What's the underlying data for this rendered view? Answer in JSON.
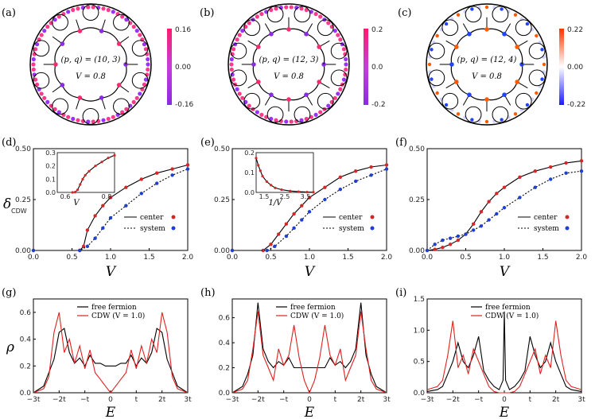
{
  "colors": {
    "center": "#d62728",
    "system": "#1f3fd0",
    "free": "#000000",
    "cdw": "#e02020"
  },
  "disks": [
    {
      "label": "(a)",
      "pq": "(p, q) = (10, 3)",
      "V": "V = 0.8",
      "cb_top": "0.16",
      "cb_mid": "0.00",
      "cb_bot": "-0.16",
      "scheme": "pink"
    },
    {
      "label": "(b)",
      "pq": "(p, q) = (12, 3)",
      "V": "V = 0.8",
      "cb_top": "0.2",
      "cb_mid": "0.0",
      "cb_bot": "-0.2",
      "scheme": "pink"
    },
    {
      "label": "(c)",
      "pq": "(p, q) = (12, 4)",
      "V": "V = 0.8",
      "cb_top": "0.22",
      "cb_mid": "0.00",
      "cb_bot": "-0.22",
      "scheme": "redblue"
    }
  ],
  "mid_axes": {
    "xlabel": "V",
    "ylabel": "δ",
    "ylabel_sub": "CDW",
    "legend_center": "center",
    "legend_system": "system"
  },
  "bot_axes": {
    "xlabel": "E",
    "ylabel": "ρ",
    "legend_free": "free fermion",
    "legend_cdw": "CDW (V = 1.0)"
  },
  "mid_labels": [
    "(d)",
    "(e)",
    "(f)"
  ],
  "bot_labels": [
    "(g)",
    "(h)",
    "(i)"
  ],
  "chart_data": [
    {
      "panel": "(d)",
      "type": "line",
      "xlim": [
        0,
        2
      ],
      "ylim": [
        0,
        0.5
      ],
      "xticks": [
        "0.0",
        "0.5",
        "1.0",
        "1.5",
        "2.0"
      ],
      "yticks": [
        "0.00",
        "0.25",
        "0.50"
      ],
      "series": [
        {
          "name": "center",
          "x": [
            0,
            0.6,
            0.65,
            0.7,
            0.8,
            0.9,
            1.0,
            1.2,
            1.4,
            1.6,
            1.8,
            2.0
          ],
          "y": [
            0,
            0,
            0.02,
            0.1,
            0.17,
            0.22,
            0.26,
            0.31,
            0.35,
            0.38,
            0.4,
            0.42
          ]
        },
        {
          "name": "system",
          "x": [
            0,
            0.6,
            0.7,
            0.8,
            0.9,
            1.0,
            1.2,
            1.4,
            1.6,
            1.8,
            2.0
          ],
          "y": [
            0,
            0,
            0.02,
            0.06,
            0.11,
            0.16,
            0.22,
            0.28,
            0.33,
            0.37,
            0.4
          ]
        }
      ],
      "inset": {
        "xlabel": "V",
        "xticks": [
          "0.6",
          "0.8"
        ],
        "yticks": [
          "0.0",
          "0.1",
          "0.2",
          "0.3"
        ],
        "xlim": [
          0.5,
          0.95
        ],
        "ylim": [
          0,
          0.3
        ],
        "x": [
          0.62,
          0.64,
          0.66,
          0.68,
          0.7,
          0.72,
          0.75,
          0.8,
          0.85,
          0.9,
          0.95
        ],
        "y": [
          0,
          0.002,
          0.02,
          0.06,
          0.1,
          0.13,
          0.16,
          0.2,
          0.23,
          0.26,
          0.28
        ]
      }
    },
    {
      "panel": "(e)",
      "type": "line",
      "xlim": [
        0,
        2
      ],
      "ylim": [
        0,
        0.5
      ],
      "xticks": [
        "0.0",
        "0.5",
        "1.0",
        "1.5",
        "2.0"
      ],
      "yticks": [
        "0.00",
        "0.25",
        "0.50"
      ],
      "series": [
        {
          "name": "center",
          "x": [
            0,
            0.4,
            0.5,
            0.6,
            0.7,
            0.8,
            0.9,
            1.0,
            1.2,
            1.4,
            1.6,
            1.8,
            2.0
          ],
          "y": [
            0,
            0,
            0.03,
            0.08,
            0.13,
            0.18,
            0.22,
            0.26,
            0.31,
            0.36,
            0.39,
            0.41,
            0.42
          ]
        },
        {
          "name": "system",
          "x": [
            0,
            0.45,
            0.55,
            0.7,
            0.8,
            0.9,
            1.0,
            1.2,
            1.4,
            1.6,
            1.8,
            2.0
          ],
          "y": [
            0,
            0,
            0.02,
            0.07,
            0.11,
            0.15,
            0.19,
            0.25,
            0.3,
            0.34,
            0.37,
            0.4
          ]
        }
      ],
      "inset": {
        "xlabel": "1/V",
        "xticks": [
          "1.5",
          "2.5",
          "3.5"
        ],
        "yticks": [
          "0.0",
          "0.1",
          "0.2"
        ],
        "xlim": [
          1.2,
          3.9
        ],
        "ylim": [
          0,
          0.22
        ],
        "x": [
          1.2,
          1.3,
          1.4,
          1.5,
          1.7,
          1.9,
          2.1,
          2.4,
          2.8,
          3.2,
          3.6,
          3.9
        ],
        "y": [
          0.19,
          0.15,
          0.12,
          0.09,
          0.06,
          0.04,
          0.025,
          0.015,
          0.008,
          0.004,
          0.002,
          0.001
        ]
      }
    },
    {
      "panel": "(f)",
      "type": "line",
      "xlim": [
        0,
        2
      ],
      "ylim": [
        0,
        0.5
      ],
      "xticks": [
        "0.0",
        "0.5",
        "1.0",
        "1.5",
        "2.0"
      ],
      "yticks": [
        "0.00",
        "0.25",
        "0.50"
      ],
      "series": [
        {
          "name": "center",
          "x": [
            0,
            0.1,
            0.2,
            0.3,
            0.4,
            0.5,
            0.6,
            0.7,
            0.8,
            0.9,
            1.0,
            1.2,
            1.4,
            1.6,
            1.8,
            2.0
          ],
          "y": [
            0,
            0.005,
            0.015,
            0.03,
            0.05,
            0.08,
            0.13,
            0.19,
            0.24,
            0.28,
            0.31,
            0.36,
            0.39,
            0.41,
            0.43,
            0.44
          ]
        },
        {
          "name": "system",
          "x": [
            0,
            0.1,
            0.2,
            0.3,
            0.4,
            0.5,
            0.6,
            0.7,
            0.8,
            0.9,
            1.0,
            1.2,
            1.4,
            1.6,
            1.8,
            2.0
          ],
          "y": [
            0,
            0.03,
            0.05,
            0.06,
            0.07,
            0.08,
            0.1,
            0.12,
            0.15,
            0.18,
            0.21,
            0.26,
            0.31,
            0.35,
            0.38,
            0.39
          ]
        }
      ]
    },
    {
      "panel": "(g)",
      "type": "line",
      "xlim": [
        -3,
        3
      ],
      "ylim": [
        0,
        0.7
      ],
      "xticks": [
        "−3t",
        "−2t",
        "−t",
        "0",
        "t",
        "2t",
        "3t"
      ],
      "yticks": [
        "0.0",
        "0.2",
        "0.4",
        "0.6"
      ],
      "series": [
        {
          "name": "free fermion",
          "x": [
            -3,
            -2.6,
            -2.4,
            -2.2,
            -2.0,
            -1.8,
            -1.6,
            -1.4,
            -1.2,
            -1.0,
            -0.8,
            -0.6,
            -0.4,
            -0.2,
            0,
            0.2,
            0.4,
            0.6,
            0.8,
            1.0,
            1.2,
            1.4,
            1.6,
            1.8,
            2.0,
            2.2,
            2.4,
            2.6,
            3
          ],
          "y": [
            0,
            0.05,
            0.15,
            0.25,
            0.45,
            0.48,
            0.3,
            0.22,
            0.26,
            0.2,
            0.28,
            0.22,
            0.22,
            0.2,
            0.2,
            0.2,
            0.22,
            0.22,
            0.28,
            0.2,
            0.26,
            0.22,
            0.3,
            0.48,
            0.45,
            0.25,
            0.15,
            0.05,
            0
          ]
        },
        {
          "name": "CDW (V = 1.0)",
          "x": [
            -3,
            -2.6,
            -2.4,
            -2.2,
            -2.0,
            -1.8,
            -1.6,
            -1.4,
            -1.2,
            -1.0,
            -0.8,
            -0.6,
            -0.4,
            -0.2,
            0,
            0.2,
            0.4,
            0.6,
            0.8,
            1.0,
            1.2,
            1.4,
            1.6,
            1.8,
            2.0,
            2.2,
            2.4,
            2.6,
            3
          ],
          "y": [
            0,
            0.03,
            0.12,
            0.45,
            0.6,
            0.3,
            0.4,
            0.22,
            0.35,
            0.18,
            0.32,
            0.15,
            0.1,
            0.05,
            0.0,
            0.05,
            0.1,
            0.15,
            0.32,
            0.18,
            0.35,
            0.22,
            0.4,
            0.3,
            0.6,
            0.45,
            0.12,
            0.03,
            0
          ]
        }
      ]
    },
    {
      "panel": "(h)",
      "type": "line",
      "xlim": [
        -3,
        3
      ],
      "ylim": [
        0,
        0.75
      ],
      "xticks": [
        "−3t",
        "−2t",
        "−t",
        "0",
        "t",
        "2t",
        "3t"
      ],
      "yticks": [
        "0.0",
        "0.2",
        "0.4",
        "0.6"
      ],
      "series": [
        {
          "name": "free fermion",
          "x": [
            -3,
            -2.6,
            -2.4,
            -2.2,
            -2.0,
            -1.8,
            -1.6,
            -1.4,
            -1.2,
            -1.0,
            -0.8,
            -0.6,
            -0.4,
            -0.2,
            0,
            0.2,
            0.4,
            0.6,
            0.8,
            1.0,
            1.2,
            1.4,
            1.6,
            1.8,
            2.0,
            2.2,
            2.4,
            2.6,
            3
          ],
          "y": [
            0,
            0.05,
            0.15,
            0.3,
            0.72,
            0.35,
            0.25,
            0.2,
            0.25,
            0.22,
            0.28,
            0.2,
            0.2,
            0.2,
            0.2,
            0.2,
            0.2,
            0.2,
            0.28,
            0.22,
            0.25,
            0.2,
            0.25,
            0.35,
            0.72,
            0.3,
            0.15,
            0.05,
            0
          ]
        },
        {
          "name": "CDW (V = 1.0)",
          "x": [
            -3,
            -2.6,
            -2.4,
            -2.2,
            -2.0,
            -1.8,
            -1.6,
            -1.4,
            -1.2,
            -1.0,
            -0.8,
            -0.6,
            -0.4,
            -0.2,
            0,
            0.2,
            0.4,
            0.6,
            0.8,
            1.0,
            1.2,
            1.4,
            1.6,
            1.8,
            2.0,
            2.2,
            2.4,
            2.6,
            3
          ],
          "y": [
            0,
            0.03,
            0.1,
            0.35,
            0.65,
            0.3,
            0.2,
            0.1,
            0.35,
            0.22,
            0.3,
            0.54,
            0.28,
            0.1,
            0.0,
            0.1,
            0.28,
            0.54,
            0.3,
            0.22,
            0.35,
            0.1,
            0.2,
            0.3,
            0.65,
            0.35,
            0.1,
            0.03,
            0
          ]
        }
      ]
    },
    {
      "panel": "(i)",
      "type": "line",
      "xlim": [
        -3,
        3
      ],
      "ylim": [
        0,
        1.5
      ],
      "xticks": [
        "−3t",
        "−2t",
        "−t",
        "0",
        "t",
        "2t",
        "3t"
      ],
      "yticks": [
        "0.0",
        "0.5",
        "1.0",
        "1.5"
      ],
      "series": [
        {
          "name": "free fermion",
          "x": [
            -3,
            -2.6,
            -2.4,
            -2.2,
            -2.0,
            -1.8,
            -1.6,
            -1.4,
            -1.2,
            -1.0,
            -0.8,
            -0.6,
            -0.4,
            -0.2,
            -0.05,
            0,
            0.05,
            0.2,
            0.4,
            0.6,
            0.8,
            1.0,
            1.2,
            1.4,
            1.6,
            1.8,
            2.0,
            2.2,
            2.4,
            2.6,
            3
          ],
          "y": [
            0.02,
            0.05,
            0.1,
            0.3,
            0.5,
            0.8,
            0.5,
            0.4,
            0.6,
            0.9,
            0.35,
            0.2,
            0.1,
            0.05,
            0.2,
            1.3,
            0.2,
            0.05,
            0.1,
            0.2,
            0.35,
            0.9,
            0.6,
            0.4,
            0.5,
            0.8,
            0.5,
            0.3,
            0.1,
            0.05,
            0.02
          ]
        },
        {
          "name": "CDW (V = 1.0)",
          "x": [
            -3,
            -2.6,
            -2.4,
            -2.2,
            -2.0,
            -1.8,
            -1.6,
            -1.4,
            -1.2,
            -1.0,
            -0.8,
            -0.6,
            -0.4,
            -0.2,
            0,
            0.2,
            0.4,
            0.6,
            0.8,
            1.0,
            1.2,
            1.4,
            1.6,
            1.8,
            2.0,
            2.2,
            2.4,
            2.6,
            3
          ],
          "y": [
            0.05,
            0.1,
            0.2,
            0.6,
            1.15,
            0.4,
            0.6,
            0.3,
            0.7,
            0.5,
            0.3,
            0.1,
            0.02,
            0.0,
            0.0,
            0.0,
            0.02,
            0.1,
            0.3,
            0.5,
            0.7,
            0.3,
            0.6,
            0.4,
            1.15,
            0.6,
            0.2,
            0.1,
            0.05
          ]
        }
      ]
    }
  ]
}
